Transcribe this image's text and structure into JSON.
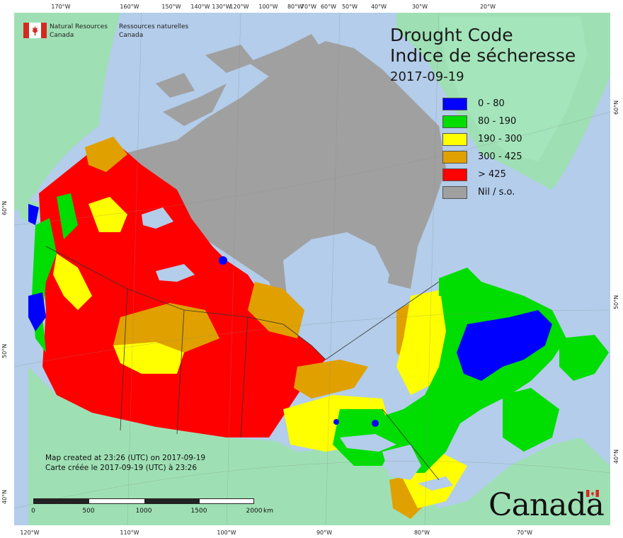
{
  "org": {
    "en_line1": "Natural Resources",
    "en_line2": "Canada",
    "fr_line1": "Ressources naturelles",
    "fr_line2": "Canada"
  },
  "title": {
    "en": "Drought Code",
    "fr": "Indice de sécheresse",
    "date": "2017-09-19"
  },
  "legend": [
    {
      "label": "0 - 80",
      "color": "#0000ff"
    },
    {
      "label": "80 - 190",
      "color": "#00dd00"
    },
    {
      "label": "190 - 300",
      "color": "#ffff00"
    },
    {
      "label": "300 - 425",
      "color": "#e0a000"
    },
    {
      "label": "> 425",
      "color": "#ff0000"
    },
    {
      "label": "Nil / s.o.",
      "color": "#a0a0a0"
    }
  ],
  "credit": {
    "en": "Map created at 23:26 (UTC) on 2017-09-19",
    "fr": "Carte créée le 2017-09-19 (UTC) à 23:26"
  },
  "scale": {
    "labels": [
      "0",
      "500",
      "1000",
      "1500",
      "2000"
    ],
    "unit": "km"
  },
  "wordmark": "Canada",
  "graticule": {
    "top": [
      "170°W",
      "160°W",
      "150°W",
      "140°W",
      "130°W",
      "120°W",
      "100°W",
      "80°W",
      "70°W",
      "60°W",
      "50°W",
      "40°W",
      "30°W",
      "20°W"
    ],
    "bottom": [
      "120°W",
      "110°W",
      "100°W",
      "90°W",
      "80°W",
      "70°W"
    ],
    "left": [
      "60°N",
      "50°N",
      "40°N"
    ],
    "right": [
      "60°N",
      "50°N",
      "40°N"
    ]
  },
  "colors": {
    "ocean": "#b3cdea",
    "land_foreign": "#9ee0b4",
    "nil": "#a0a0a0"
  }
}
